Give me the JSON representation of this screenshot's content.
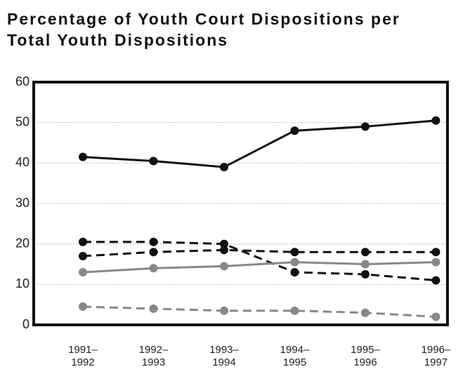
{
  "chart_data": {
    "type": "line",
    "title": "Percentage of Youth Court Dispositions per Total Youth Dispositions",
    "categories": [
      "1991–1992",
      "1992–1993",
      "1993–1994",
      "1994–1995",
      "1995–1996",
      "1996–1997"
    ],
    "series": [
      {
        "color": "#111111",
        "style": "solid",
        "values": [
          41.5,
          40.5,
          39,
          48,
          49,
          50.5
        ]
      },
      {
        "color": "#111111",
        "style": "dashed",
        "values": [
          20.5,
          20.5,
          20,
          13,
          12.5,
          11
        ]
      },
      {
        "color": "#111111",
        "style": "dashed",
        "values": [
          17,
          18,
          18.5,
          18,
          18,
          18
        ]
      },
      {
        "color": "#888888",
        "style": "solid",
        "values": [
          13,
          14,
          14.5,
          15.5,
          15,
          15.5
        ]
      },
      {
        "color": "#888888",
        "style": "dashed",
        "values": [
          4.5,
          4,
          3.5,
          3.5,
          3,
          2
        ]
      }
    ],
    "ylim": [
      0,
      60
    ],
    "yticks": [
      0,
      10,
      20,
      30,
      40,
      50,
      60
    ],
    "grid": true
  }
}
